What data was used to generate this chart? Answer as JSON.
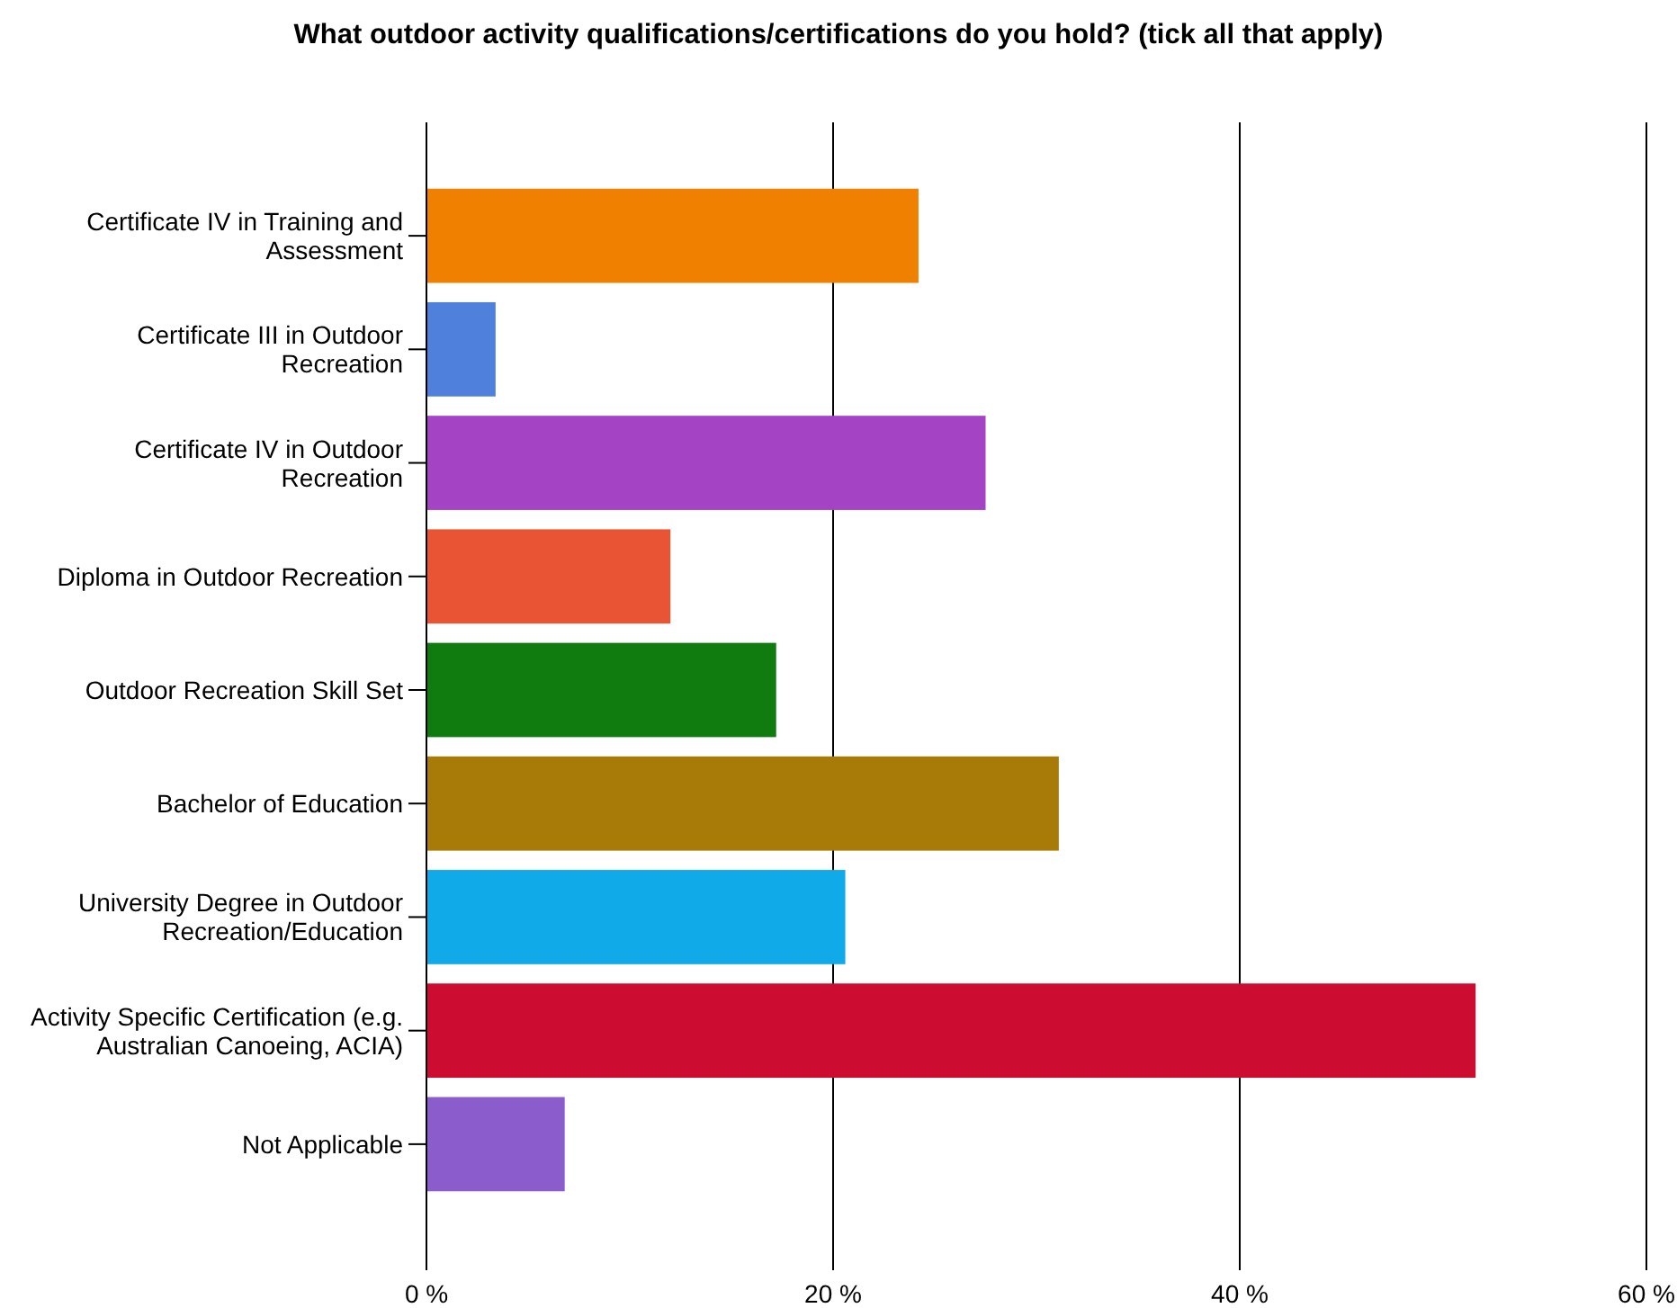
{
  "chart_data": {
    "type": "bar",
    "orientation": "horizontal",
    "title": "What outdoor activity qualifications/certifications do you hold? (tick all that apply)",
    "categories": [
      "Certificate IV in Training and Assessment",
      "Certificate III in Outdoor Recreation",
      "Certificate IV in Outdoor Recreation",
      "Diploma in Outdoor Recreation",
      "Outdoor Recreation Skill Set",
      "Bachelor of Education",
      "University Degree in Outdoor Recreation/Education",
      "Activity Specific Certification (e.g. Australian Canoeing, ACIA)",
      "Not Applicable"
    ],
    "values": [
      24.2,
      3.4,
      27.5,
      12.0,
      17.2,
      31.1,
      20.6,
      51.6,
      6.8
    ],
    "colors": [
      "#f08000",
      "#4f80dc",
      "#a444c4",
      "#e85434",
      "#107c10",
      "#a87a08",
      "#10aae8",
      "#cc0c30",
      "#8a5ccc"
    ],
    "xlim": [
      0,
      60
    ],
    "xticks": [
      {
        "value": 0,
        "label": "0 %"
      },
      {
        "value": 20,
        "label": "20 %"
      },
      {
        "value": 40,
        "label": "40 %"
      },
      {
        "value": 60,
        "label": "60 %"
      }
    ],
    "grid": "x"
  }
}
